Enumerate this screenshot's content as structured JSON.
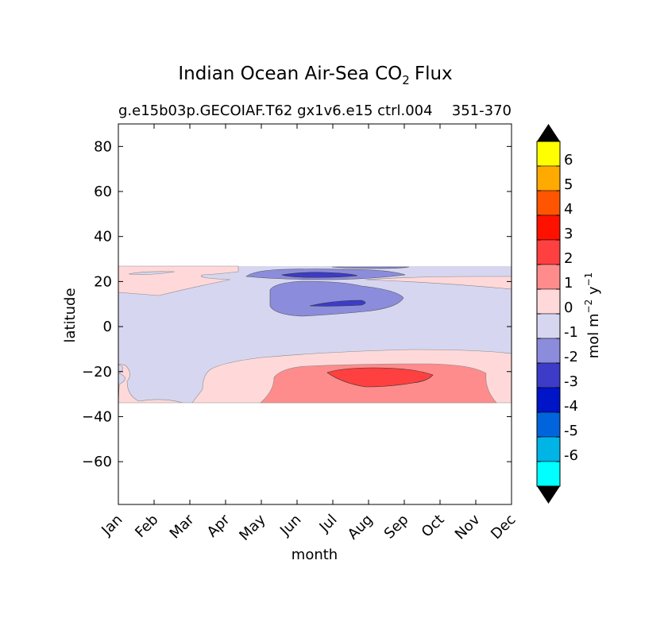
{
  "chart_data": {
    "type": "contour",
    "title_main": "Indian Ocean Air-Sea CO",
    "title_sub_script": "2",
    "title_tail": "Flux",
    "subtitle_left": "g.e15b03p.GECOIAF.T62 gx1v6.e15 ctrl.004",
    "subtitle_right": "351-370",
    "xlabel": "month",
    "ylabel": "latitude",
    "xticks": [
      "Jan",
      "Feb",
      "Mar",
      "Apr",
      "May",
      "Jun",
      "Jul",
      "Aug",
      "Sep",
      "Oct",
      "Nov",
      "Dec"
    ],
    "yticks": [
      80,
      60,
      40,
      20,
      0,
      -20,
      -40,
      -60
    ],
    "ytick_labels": [
      "80",
      "60",
      "40",
      "20",
      "0",
      "−20",
      "−40",
      "−60"
    ],
    "ylim": [
      -79,
      90
    ],
    "xlim": [
      0,
      11
    ],
    "data_lat_range": [
      -34,
      27
    ],
    "colorbar": {
      "label": "mol m",
      "label_sup1": "−2",
      "label_mid": " y",
      "label_sup2": "−1",
      "levels": [
        "6",
        "5",
        "4",
        "3",
        "2",
        "1",
        "0",
        "-1",
        "-2",
        "-3",
        "-4",
        "-5",
        "-6"
      ],
      "colors": [
        "#ffff00",
        "#ffaa00",
        "#ff5500",
        "#ff1100",
        "#ff4040",
        "#ff8c8c",
        "#ffd9d9",
        "#d6d6f0",
        "#8c8cdc",
        "#3c3cc8",
        "#0014c8",
        "#0064dc",
        "#00b4e6",
        "#00ffff"
      ],
      "extend_color": "#000000"
    },
    "regions": [
      {
        "level": "0 to 1",
        "color": "#ffd9d9",
        "desc": "northern band 16-27N, Jan-Apr"
      },
      {
        "level": "0 to 1",
        "color": "#ffd9d9",
        "desc": "northern band 18-24N, Aug-Dec"
      },
      {
        "level": "-1 to -2",
        "color": "#8c8cdc",
        "desc": "Arabian Sea 20-26N, May-Sep"
      },
      {
        "level": "-1 to -2",
        "color": "#8c8cdc",
        "desc": "5-18N, Jun-Sep"
      },
      {
        "level": "-2 to -3",
        "color": "#3c3cc8",
        "desc": "24N Jun-Jul and 9N Jul-Aug"
      },
      {
        "level": "0 to 1",
        "color": "#ffd9d9",
        "desc": "southern band -10 to -34S"
      },
      {
        "level": "1 to 2",
        "color": "#ff8c8c",
        "desc": "-17 to -34S, May-Nov"
      },
      {
        "level": "2 to 3",
        "color": "#ff4040",
        "desc": "-19 to -27S, Jul-Sep"
      }
    ]
  }
}
